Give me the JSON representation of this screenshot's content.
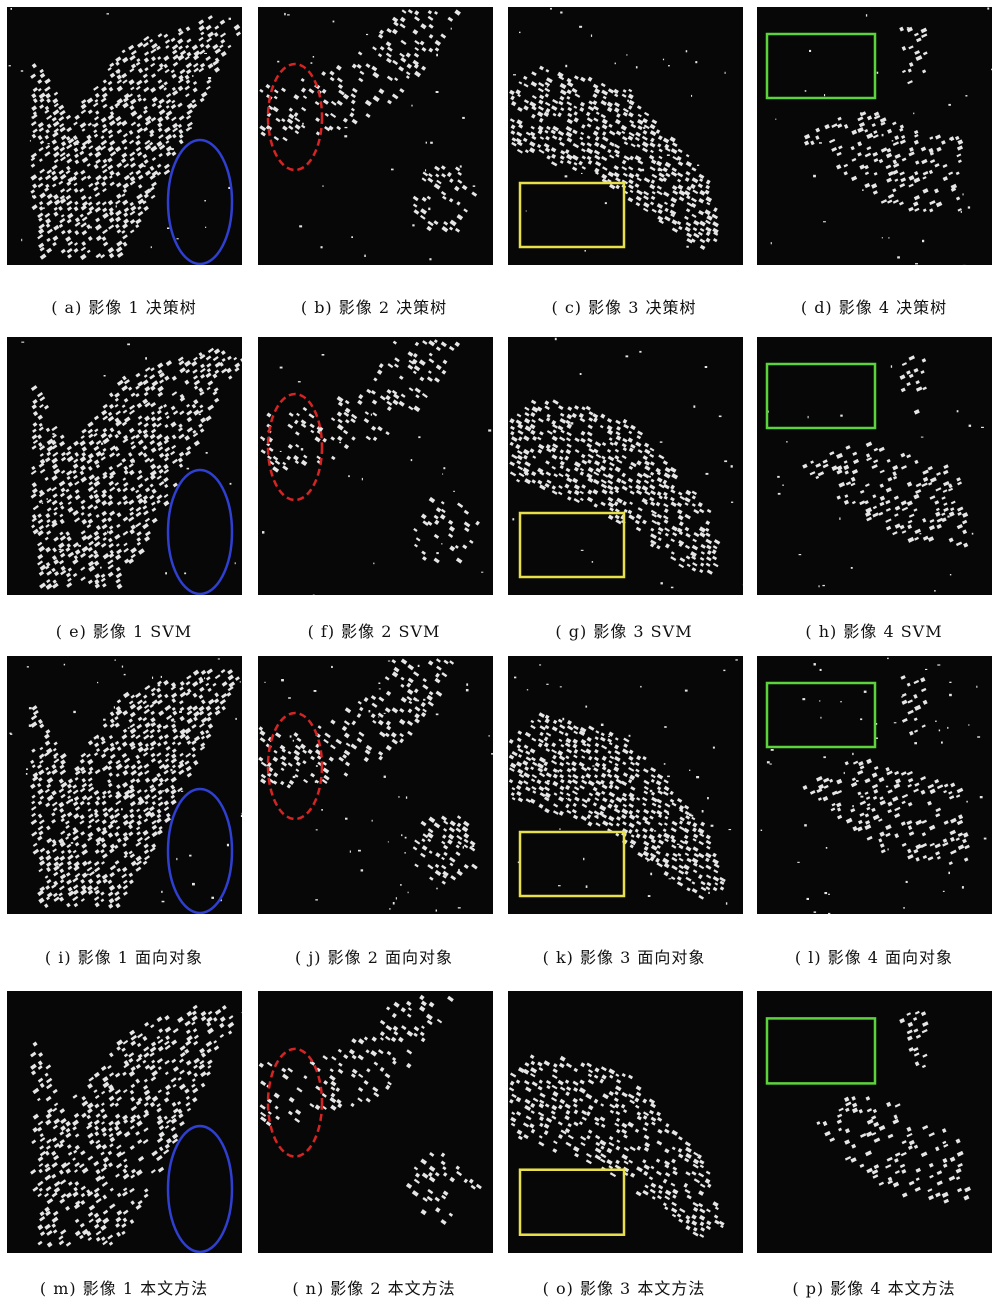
{
  "figure": {
    "panels": [
      {
        "caption": "( a) 影像 1 决策树",
        "scene": 1,
        "method": "tree"
      },
      {
        "caption": "( b) 影像 2 决策树",
        "scene": 2,
        "method": "tree"
      },
      {
        "caption": "( c) 影像 3 决策树",
        "scene": 3,
        "method": "tree"
      },
      {
        "caption": "( d) 影像 4 决策树",
        "scene": 4,
        "method": "tree"
      },
      {
        "caption": "( e) 影像 1 SVM",
        "scene": 1,
        "method": "svm"
      },
      {
        "caption": "( f) 影像 2 SVM",
        "scene": 2,
        "method": "svm"
      },
      {
        "caption": "( g) 影像 3 SVM",
        "scene": 3,
        "method": "svm"
      },
      {
        "caption": "( h) 影像 4 SVM",
        "scene": 4,
        "method": "svm"
      },
      {
        "caption": "( i) 影像 1 面向对象",
        "scene": 1,
        "method": "object"
      },
      {
        "caption": "( j) 影像 2 面向对象",
        "scene": 2,
        "method": "object"
      },
      {
        "caption": "( k) 影像 3 面向对象",
        "scene": 3,
        "method": "object"
      },
      {
        "caption": "( l) 影像 4 面向对象",
        "scene": 4,
        "method": "object"
      },
      {
        "caption": "( m) 影像 1 本文方法",
        "scene": 1,
        "method": "ours"
      },
      {
        "caption": "( n) 影像 2 本文方法",
        "scene": 2,
        "method": "ours"
      },
      {
        "caption": "( o) 影像 3 本文方法",
        "scene": 3,
        "method": "ours"
      },
      {
        "caption": "( p) 影像 4 本文方法",
        "scene": 4,
        "method": "ours"
      }
    ],
    "markers": {
      "1": {
        "shape": "ellipse",
        "color": "#2f3fd0",
        "style": "solid"
      },
      "2": {
        "shape": "ellipse",
        "color": "#d42424",
        "style": "dashed"
      },
      "3": {
        "shape": "rect",
        "color": "#e8e04a",
        "style": "solid"
      },
      "4": {
        "shape": "rect",
        "color": "#5cd23c",
        "style": "solid"
      }
    },
    "colors": {
      "background": "#070707",
      "building": "#e6e6e6"
    }
  }
}
